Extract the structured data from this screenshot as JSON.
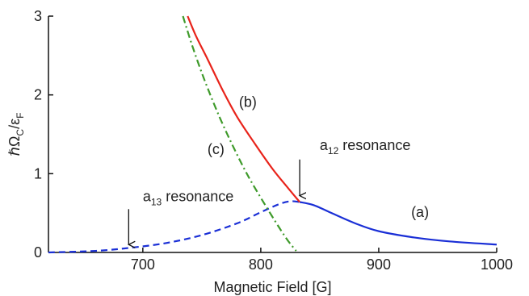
{
  "chart_data": {
    "type": "line",
    "title": "",
    "xlabel": "Magnetic Field [G]",
    "ylabel": "ℏΩ",
    "ylabel_sub": "C",
    "ylabel_tail": "/ε",
    "ylabel_tail_sub": "F",
    "xlim": [
      620,
      1000
    ],
    "ylim": [
      0,
      3
    ],
    "xticks": [
      700,
      800,
      900,
      1000
    ],
    "yticks": [
      0,
      1,
      2,
      3
    ],
    "grid": false,
    "series": [
      {
        "name": "(a)",
        "color": "#1a2fd6",
        "style": "dashed",
        "x": [
          620,
          660,
          690,
          720,
          750,
          780,
          800,
          815,
          825,
          833
        ],
        "y": [
          0.0,
          0.02,
          0.06,
          0.12,
          0.22,
          0.37,
          0.51,
          0.61,
          0.65,
          0.64
        ]
      },
      {
        "name": "(a)",
        "color": "#1a2fd6",
        "style": "solid",
        "x": [
          833,
          845,
          860,
          880,
          900,
          930,
          960,
          1000
        ],
        "y": [
          0.64,
          0.6,
          0.5,
          0.37,
          0.27,
          0.19,
          0.14,
          0.1
        ]
      },
      {
        "name": "(b)",
        "color": "#e8231a",
        "style": "solid",
        "x": [
          738,
          745,
          755,
          768,
          780,
          795,
          810,
          823,
          833
        ],
        "y": [
          3.0,
          2.75,
          2.45,
          2.05,
          1.72,
          1.38,
          1.06,
          0.82,
          0.64
        ]
      },
      {
        "name": "(c)",
        "color": "#3e9a2a",
        "style": "dashdot",
        "x": [
          734,
          742,
          752,
          765,
          778,
          790,
          803,
          815,
          823,
          830
        ],
        "y": [
          3.0,
          2.62,
          2.2,
          1.72,
          1.3,
          0.95,
          0.62,
          0.33,
          0.15,
          0.02
        ]
      }
    ],
    "annotations": [
      {
        "id": "label-a",
        "text": "(a)",
        "x": 935,
        "y": 0.45
      },
      {
        "id": "label-b",
        "text": "(b)",
        "x": 789,
        "y": 1.85
      },
      {
        "id": "label-c",
        "text": "(c)",
        "x": 762,
        "y": 1.25
      },
      {
        "id": "a12",
        "text_main": "a",
        "text_sub": "12",
        "text_tail": " resonance",
        "x": 850,
        "y": 1.3,
        "arrow_x": 833,
        "arrow_y_from": 1.18,
        "arrow_y_to": 0.72
      },
      {
        "id": "a13",
        "text_main": "a",
        "text_sub": "13",
        "text_tail": " resonance",
        "x": 700,
        "y": 0.65,
        "arrow_x": 688,
        "arrow_y_from": 0.55,
        "arrow_y_to": 0.1
      }
    ]
  }
}
